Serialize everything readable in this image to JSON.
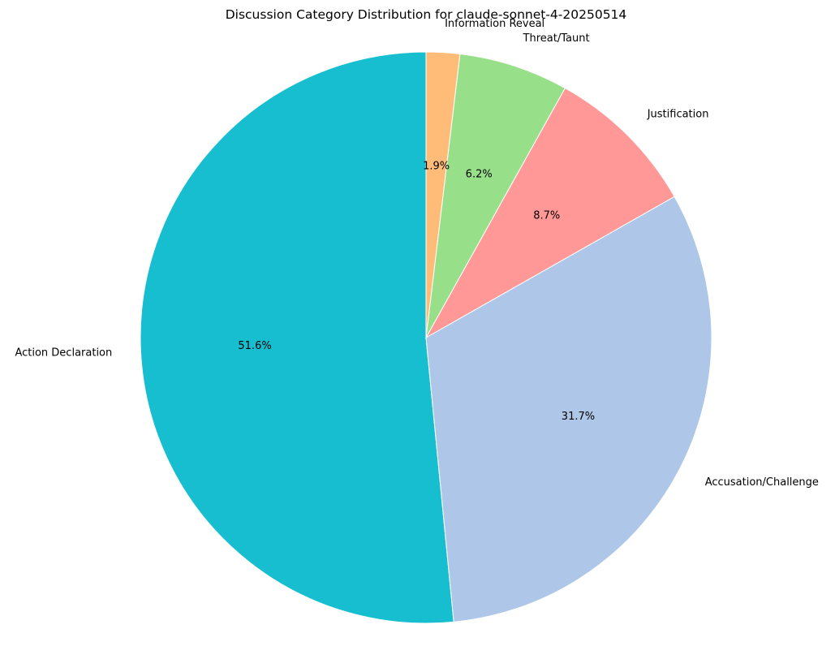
{
  "chart_data": {
    "type": "pie",
    "title": "Discussion Category Distribution for claude-sonnet-4-20250514",
    "start_angle_deg": 90,
    "direction": "counterclockwise",
    "slices": [
      {
        "label": "Action Declaration",
        "value": 51.6,
        "pct_label": "51.6%",
        "color": "#17becf"
      },
      {
        "label": "Accusation/Challenge",
        "value": 31.7,
        "pct_label": "31.7%",
        "color": "#aec7e8"
      },
      {
        "label": "Justification",
        "value": 8.7,
        "pct_label": "8.7%",
        "color": "#ff9896"
      },
      {
        "label": "Threat/Taunt",
        "value": 6.2,
        "pct_label": "6.2%",
        "color": "#98df8a"
      },
      {
        "label": "Information Reveal",
        "value": 1.9,
        "pct_label": "1.9%",
        "color": "#ffbb78"
      }
    ]
  }
}
